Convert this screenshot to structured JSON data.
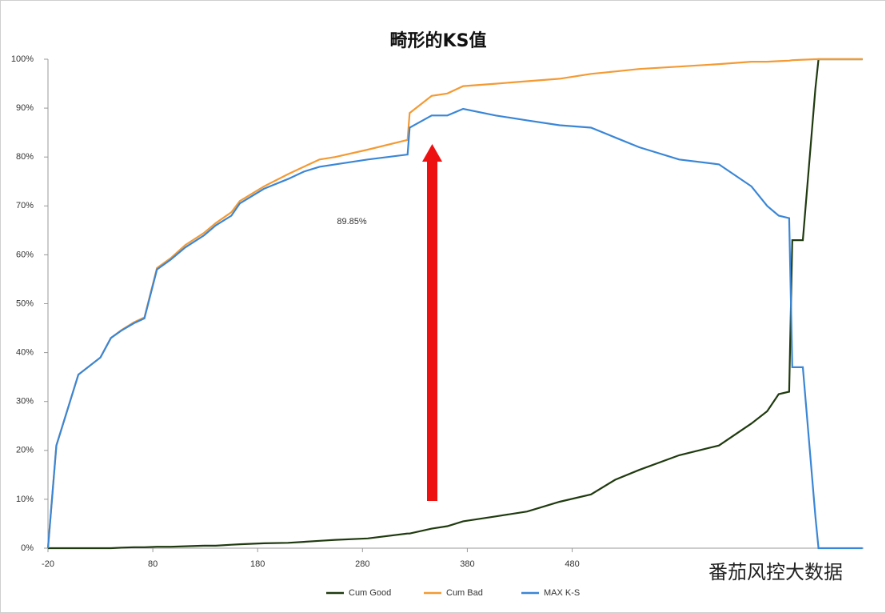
{
  "chart_data": {
    "type": "line",
    "title": "畸形的KS值",
    "annotation": "89.85%",
    "watermark": "番茄风控大数据",
    "x": [
      -20,
      -12,
      9,
      30,
      40,
      50,
      62,
      72,
      84,
      97,
      111,
      129,
      140,
      155,
      163,
      186,
      209,
      224,
      239,
      254,
      285,
      323,
      325,
      346,
      361,
      376,
      407,
      437,
      468,
      498,
      521,
      544,
      582,
      620,
      651,
      666,
      677,
      687,
      690,
      700,
      712,
      715,
      757
    ],
    "series": [
      {
        "name": "Cum Good",
        "color": "#1f3a0f",
        "values": [
          0,
          0,
          0,
          0,
          0,
          0.1,
          0.2,
          0.2,
          0.3,
          0.3,
          0.4,
          0.5,
          0.5,
          0.7,
          0.8,
          1,
          1.1,
          1.3,
          1.5,
          1.7,
          2,
          3,
          3,
          4,
          4.5,
          5.5,
          6.5,
          7.5,
          9.5,
          11,
          14,
          16,
          19,
          21,
          25.5,
          28,
          31.5,
          32,
          63,
          63,
          94,
          100,
          100
        ]
      },
      {
        "name": "Cum Bad",
        "color": "#f39a33",
        "values": [
          0,
          21,
          35.5,
          39,
          43,
          44.6,
          46.2,
          47.2,
          57.3,
          59.3,
          62,
          64.5,
          66.5,
          68.7,
          71,
          74,
          76.5,
          78,
          79.5,
          80,
          81.5,
          83.5,
          89,
          92.5,
          93,
          94.5,
          95,
          95.5,
          96,
          97,
          97.5,
          98,
          98.5,
          99,
          99.5,
          99.5,
          99.6,
          99.7,
          99.8,
          99.9,
          100,
          100,
          100
        ]
      },
      {
        "name": "MAX K-S",
        "color": "#3a86d6",
        "values": [
          0,
          21,
          35.5,
          39,
          43,
          44.5,
          46,
          47,
          57,
          59,
          61.5,
          64,
          66,
          68,
          70.5,
          73.5,
          75.5,
          77,
          78,
          78.5,
          79.5,
          80.5,
          86,
          88.5,
          88.5,
          89.85,
          88.5,
          87.5,
          86.5,
          86,
          84,
          82,
          79.5,
          78.5,
          74,
          70,
          68,
          67.5,
          37,
          37,
          6.5,
          0,
          0
        ]
      }
    ],
    "xlim": [
      -20,
      758
    ],
    "xticks": [
      -20,
      80,
      180,
      280,
      380,
      480
    ],
    "ylim": [
      0,
      100
    ],
    "yticks": [
      {
        "value": 0,
        "label": "0%"
      },
      {
        "value": 10,
        "label": "10%"
      },
      {
        "value": 20,
        "label": "20%"
      },
      {
        "value": 30,
        "label": "30%"
      },
      {
        "value": 40,
        "label": "40%"
      },
      {
        "value": 50,
        "label": "50%"
      },
      {
        "value": 60,
        "label": "60%"
      },
      {
        "value": 70,
        "label": "70%"
      },
      {
        "value": 80,
        "label": "80%"
      },
      {
        "value": 90,
        "label": "90%"
      },
      {
        "value": 100,
        "label": "100%"
      }
    ],
    "legend": "bottom"
  }
}
